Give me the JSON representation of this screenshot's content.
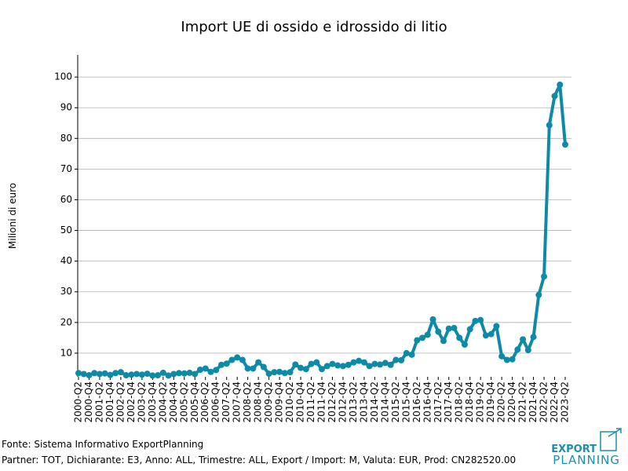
{
  "chart_data": {
    "type": "line",
    "title": "Import UE di ossido e idrossido di litio",
    "y_label": "Milioni di euro",
    "categories": [
      "2000-Q2",
      null,
      "2000-Q4",
      null,
      "2001-Q2",
      null,
      "2001-Q4",
      null,
      "2002-Q2",
      null,
      "2002-Q4",
      null,
      "2003-Q2",
      null,
      "2003-Q4",
      null,
      "2004-Q2",
      null,
      "2004-Q4",
      null,
      "2005-Q2",
      null,
      "2005-Q4",
      null,
      "2006-Q2",
      null,
      "2006-Q4",
      null,
      "2007-Q2",
      null,
      "2007-Q4",
      null,
      "2008-Q2",
      null,
      "2008-Q4",
      null,
      "2009-Q2",
      null,
      "2009-Q4",
      null,
      "2010-Q2",
      null,
      "2010-Q4",
      null,
      "2011-Q2",
      null,
      "2011-Q4",
      null,
      "2012-Q2",
      null,
      "2012-Q4",
      null,
      "2013-Q2",
      null,
      "2013-Q4",
      null,
      "2014-Q2",
      null,
      "2014-Q4",
      null,
      "2015-Q2",
      null,
      "2015-Q4",
      null,
      "2016-Q2",
      null,
      "2016-Q4",
      null,
      "2017-Q2",
      null,
      "2017-Q4",
      null,
      "2018-Q2",
      null,
      "2018-Q4",
      null,
      "2019-Q2",
      null,
      "2019-Q4",
      null,
      "2020-Q2",
      null,
      "2020-Q4",
      null,
      "2021-Q2",
      null,
      "2021-Q4",
      null,
      "2022-Q2",
      null,
      "2022-Q4",
      null,
      "2023-Q2"
    ],
    "values": [
      3.5,
      3.2,
      2.8,
      3.5,
      3.2,
      3.4,
      2.9,
      3.5,
      3.8,
      2.8,
      3.0,
      3.2,
      3.0,
      3.3,
      2.7,
      2.8,
      3.6,
      2.7,
      3.2,
      3.5,
      3.4,
      3.6,
      3.2,
      4.6,
      5.0,
      3.9,
      4.5,
      6.2,
      6.6,
      7.8,
      8.6,
      7.8,
      5.0,
      5.0,
      7.0,
      5.5,
      3.3,
      3.8,
      3.9,
      3.5,
      3.8,
      6.3,
      5.2,
      4.8,
      6.5,
      7.0,
      4.8,
      5.8,
      6.5,
      6.0,
      5.8,
      6.2,
      7.0,
      7.5,
      7.0,
      5.8,
      6.5,
      6.3,
      6.8,
      6.2,
      7.8,
      7.7,
      10.0,
      9.5,
      14.2,
      15.0,
      16.0,
      21.0,
      17.0,
      14.0,
      18.0,
      18.2,
      15.0,
      12.8,
      17.8,
      20.5,
      20.8,
      15.8,
      16.2,
      18.8,
      9.0,
      7.8,
      8.0,
      11.2,
      14.5,
      11.0,
      15.3,
      29.0,
      35.0,
      84.3,
      93.8,
      97.5,
      78.0
    ],
    "color": "#0e8aa6",
    "ylim": [
      2.3,
      107.2
    ],
    "yticks": [
      10,
      20,
      30,
      40,
      50,
      60,
      70,
      80,
      90,
      100
    ],
    "grid": true
  },
  "footer": {
    "source": "Fonte: Sistema Informativo ExportPlanning",
    "note": "Partner: TOT, Dichiarante: E3, Anno: ALL, Trimestre: ALL, Export / Import: M, Valuta: EUR, Prod: CN282520.00"
  },
  "logo": {
    "line1": "EXPORT",
    "line2": "PLANNING"
  }
}
